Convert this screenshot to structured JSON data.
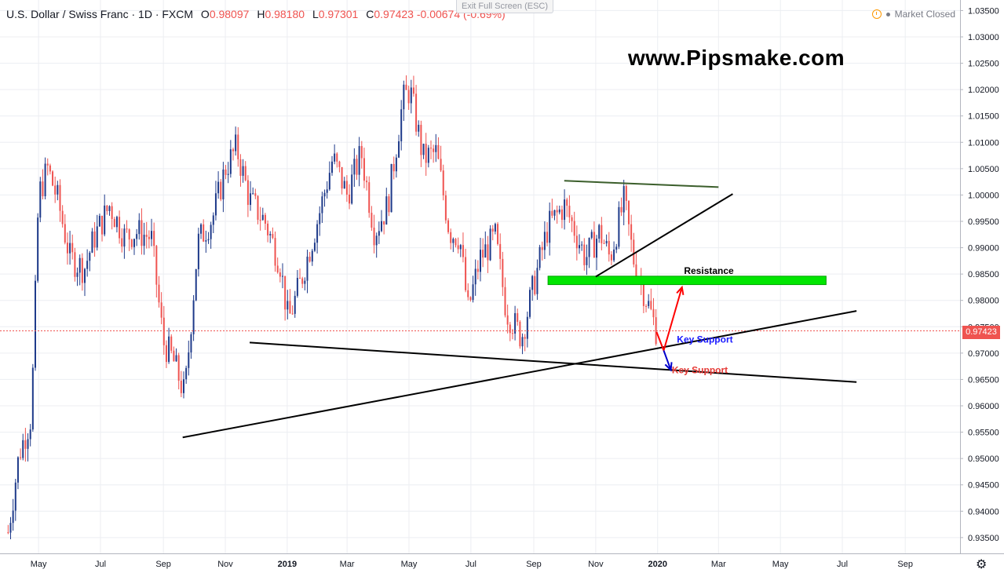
{
  "header": {
    "symbol": "U.S. Dollar / Swiss Franc · 1D · FXCM",
    "open_label": "O",
    "open": "0.98097",
    "high_label": "H",
    "high": "0.98180",
    "low_label": "L",
    "low": "0.97301",
    "close_label": "C",
    "close": "0.97423",
    "change": "-0.00674 (-0.69%)"
  },
  "exit_full_screen": "Exit Full Screen (ESC)",
  "market_status": "Market Closed",
  "watermark": "www.Pipsmake.com",
  "colors": {
    "up": "#1e3a8a",
    "down": "#ef5350",
    "grid": "#eceef2",
    "support_zone": "#00e600"
  },
  "chart_data": {
    "type": "candlestick",
    "x_ticks": [
      "May",
      "Jul",
      "Sep",
      "Nov",
      "2019",
      "Mar",
      "May",
      "Jul",
      "Sep",
      "Nov",
      "2020",
      "Mar",
      "May",
      "Jul",
      "Sep"
    ],
    "y_ticks": [
      "1.03500",
      "1.03000",
      "1.02500",
      "1.02000",
      "1.01500",
      "1.01000",
      "1.00500",
      "1.00000",
      "0.99500",
      "0.99000",
      "0.98500",
      "0.98000",
      "0.97500",
      "0.97000",
      "0.96500",
      "0.96000",
      "0.95500",
      "0.95000",
      "0.94500",
      "0.94000",
      "0.93500"
    ],
    "ylim": [
      0.932,
      1.037
    ],
    "last_price": "0.97423",
    "path": [
      [
        "2018-04-01",
        0.936
      ],
      [
        "2018-04-12",
        0.951
      ],
      [
        "2018-04-24",
        0.958
      ],
      [
        "2018-05-01",
        1.0
      ],
      [
        "2018-05-10",
        1.005
      ],
      [
        "2018-05-20",
        0.999
      ],
      [
        "2018-06-01",
        0.988
      ],
      [
        "2018-06-15",
        0.986
      ],
      [
        "2018-06-25",
        0.992
      ],
      [
        "2018-07-10",
        0.998
      ],
      [
        "2018-07-25",
        0.992
      ],
      [
        "2018-08-05",
        0.993
      ],
      [
        "2018-08-20",
        0.992
      ],
      [
        "2018-09-01",
        0.972
      ],
      [
        "2018-09-10",
        0.969
      ],
      [
        "2018-09-22",
        0.962
      ],
      [
        "2018-10-05",
        0.991
      ],
      [
        "2018-10-20",
        0.996
      ],
      [
        "2018-11-01",
        1.005
      ],
      [
        "2018-11-12",
        1.009
      ],
      [
        "2018-11-25",
        0.999
      ],
      [
        "2018-12-10",
        0.995
      ],
      [
        "2018-12-25",
        0.987
      ],
      [
        "2019-01-02",
        0.976
      ],
      [
        "2019-01-15",
        0.984
      ],
      [
        "2019-02-01",
        0.996
      ],
      [
        "2019-02-15",
        1.007
      ],
      [
        "2019-03-01",
        1.0
      ],
      [
        "2019-03-15",
        1.008
      ],
      [
        "2019-03-28",
        0.993
      ],
      [
        "2019-04-10",
        0.998
      ],
      [
        "2019-04-25",
        1.018
      ],
      [
        "2019-05-02",
        1.02
      ],
      [
        "2019-05-15",
        1.007
      ],
      [
        "2019-05-28",
        1.008
      ],
      [
        "2019-06-10",
        0.993
      ],
      [
        "2019-06-20",
        0.992
      ],
      [
        "2019-06-28",
        0.978
      ],
      [
        "2019-07-10",
        0.988
      ],
      [
        "2019-07-25",
        0.992
      ],
      [
        "2019-08-05",
        0.978
      ],
      [
        "2019-08-20",
        0.973
      ],
      [
        "2019-09-01",
        0.983
      ],
      [
        "2019-09-15",
        0.994
      ],
      [
        "2019-10-01",
        0.998
      ],
      [
        "2019-10-10",
        0.994
      ],
      [
        "2019-10-22",
        0.988
      ],
      [
        "2019-11-05",
        0.993
      ],
      [
        "2019-11-15",
        0.988
      ],
      [
        "2019-11-29",
        0.999
      ],
      [
        "2019-12-08",
        0.988
      ],
      [
        "2019-12-18",
        0.982
      ],
      [
        "2019-12-31",
        0.9742
      ]
    ],
    "trendlines": [
      {
        "from": [
          "2019-10-01",
          1.0027
        ],
        "to": [
          "2020-03-01",
          1.0015
        ],
        "color": "#3b5e2b"
      },
      {
        "from": [
          "2019-11-01",
          0.9845
        ],
        "to": [
          "2020-03-15",
          1.0002
        ],
        "color": "#000000"
      },
      {
        "from": [
          "2018-09-20",
          0.954
        ],
        "to": [
          "2020-07-15",
          0.978
        ],
        "color": "#000000"
      },
      {
        "from": [
          "2018-11-25",
          0.972
        ],
        "to": [
          "2020-07-15",
          0.9645
        ],
        "color": "#000000"
      }
    ],
    "zone": {
      "from": "2019-09-15",
      "to": "2020-06-15",
      "top": 0.984,
      "bottom": 0.983
    },
    "arrows": [
      {
        "points": [
          [
            "2019-12-31",
            0.974
          ],
          [
            "2020-01-07",
            0.9705
          ],
          [
            "2020-01-25",
            0.9825
          ]
        ],
        "color": "#ff0000"
      },
      {
        "points": [
          [
            "2020-01-07",
            0.9705
          ],
          [
            "2020-01-14",
            0.9668
          ]
        ],
        "color": "#0000cc"
      }
    ],
    "annotations": [
      {
        "text": "Resistance",
        "at": [
          "2020-01-27",
          0.985
        ],
        "color": "#000000"
      },
      {
        "text": "Key Support",
        "at": [
          "2020-01-20",
          0.972
        ],
        "color": "#1a1aff"
      },
      {
        "text": "Key Support",
        "at": [
          "2020-01-15",
          0.9662
        ],
        "color": "#e53935"
      }
    ]
  }
}
